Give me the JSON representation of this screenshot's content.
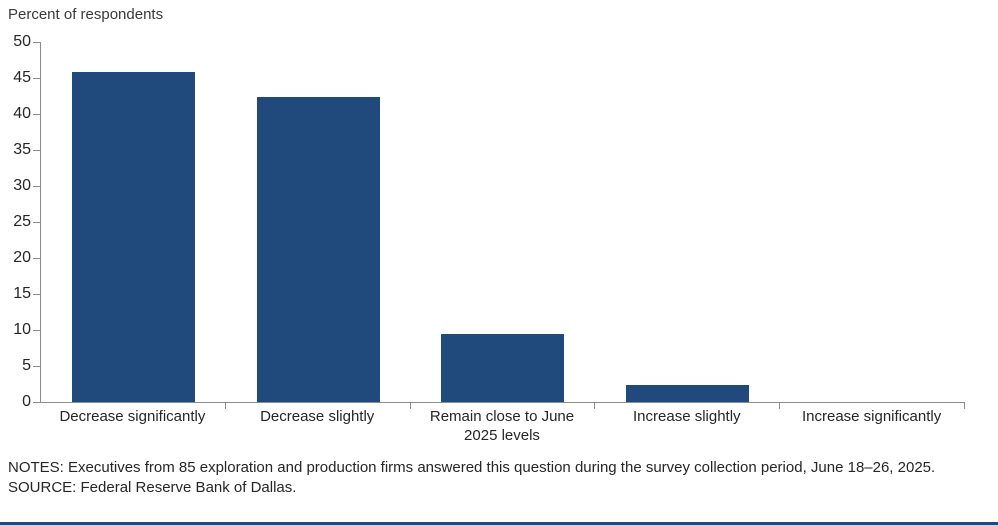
{
  "page": {
    "background": "#ffffff",
    "bottom_rule_color": "#1f4a7b"
  },
  "chart_data": {
    "type": "bar",
    "title": "Percent of respondents",
    "categories": [
      "Decrease significantly",
      "Decrease slightly",
      "Remain close to June 2025 levels",
      "Increase slightly",
      "Increase significantly"
    ],
    "values": [
      45.9,
      42.4,
      9.4,
      2.4,
      0
    ],
    "xlabel": "",
    "ylabel": "Percent of respondents",
    "ylim": [
      0,
      50
    ],
    "ytick_step": 5,
    "ytick_labels": [
      "0",
      "5",
      "10",
      "15",
      "20",
      "25",
      "30",
      "35",
      "40",
      "45",
      "50"
    ],
    "bar_color": "#1f4a7b",
    "axis_color": "#8c8c8c",
    "grid": false,
    "legend": null
  },
  "notes": {
    "notes_text": "NOTES: Executives from 85 exploration and production firms answered this question during the survey collection period, June 18–26, 2025.",
    "source_text": "SOURCE: Federal Reserve Bank of Dallas."
  }
}
